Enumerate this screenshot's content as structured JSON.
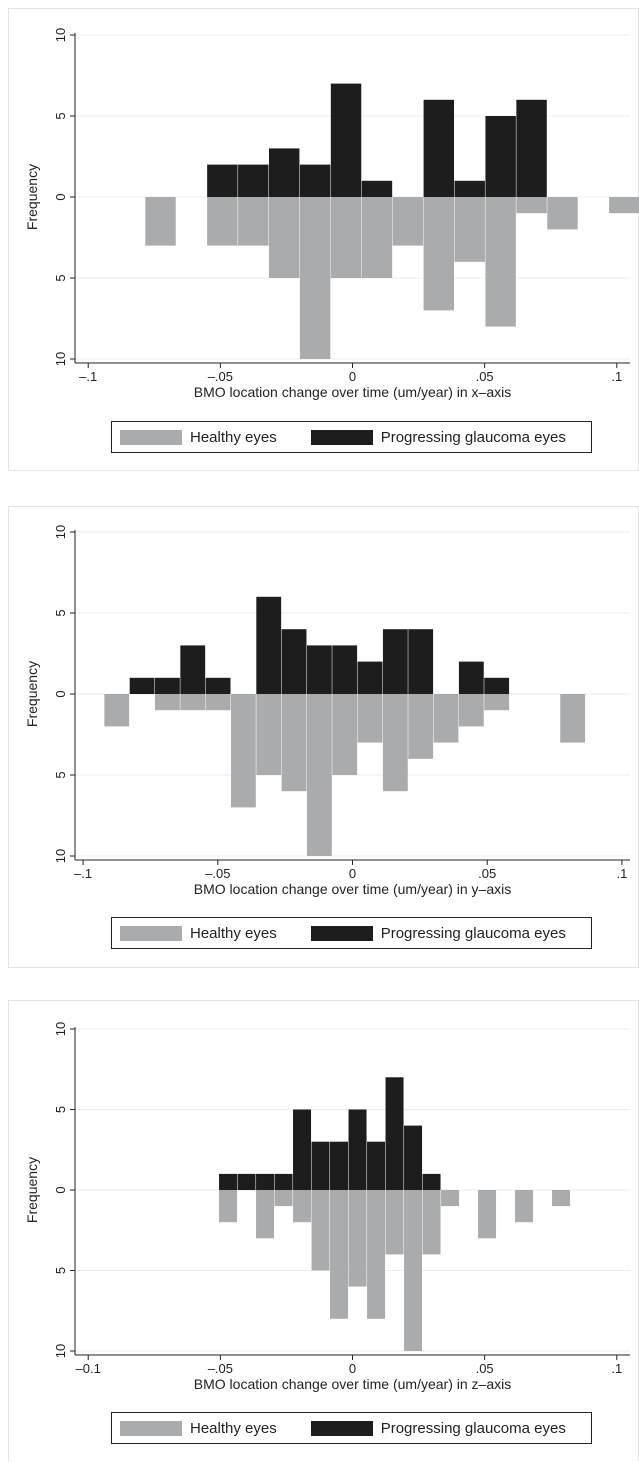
{
  "colors": {
    "healthy": "#aaabad",
    "progressing": "#1d1d1d",
    "grid": "#e8eef2",
    "axis": "#222222"
  },
  "chart_data": [
    {
      "type": "bar",
      "xlabel": "BMO location change over time (um/year) in x–axis",
      "ylabel": "Frequency",
      "xlim": [
        -0.1,
        0.1
      ],
      "ylim_up": [
        0,
        10
      ],
      "ylim_down": [
        0,
        10
      ],
      "bin_width": 0.0117,
      "xticks": [
        {
          "v": -0.1,
          "label": "–.1"
        },
        {
          "v": -0.05,
          "label": "–.05"
        },
        {
          "v": 0,
          "label": "0"
        },
        {
          "v": 0.05,
          "label": ".05"
        },
        {
          "v": 0.1,
          "label": ".1"
        }
      ],
      "yticks": [
        {
          "v": 10,
          "label": "10"
        },
        {
          "v": 5,
          "label": "5"
        },
        {
          "v": 0,
          "label": "0"
        },
        {
          "v": -5,
          "label": "5"
        },
        {
          "v": -10,
          "label": "10"
        }
      ],
      "series": [
        {
          "name": "Progressing glaucoma eyes",
          "direction": "up",
          "x": [
            -0.055,
            -0.0433,
            -0.0316,
            -0.0199,
            -0.0082,
            0.0035,
            0.0269,
            0.0386,
            0.0503,
            0.062
          ],
          "values": [
            2,
            2,
            3,
            2,
            7,
            1,
            6,
            1,
            5,
            6
          ]
        },
        {
          "name": "Healthy eyes",
          "direction": "down",
          "x": [
            -0.0784,
            -0.055,
            -0.0433,
            -0.0316,
            -0.0199,
            -0.0082,
            0.0035,
            0.0152,
            0.0269,
            0.0386,
            0.0503,
            0.062,
            0.0737,
            0.0971
          ],
          "values": [
            3,
            3,
            3,
            5,
            10,
            5,
            5,
            3,
            7,
            4,
            8,
            1,
            2,
            1
          ]
        }
      ],
      "legend": [
        {
          "label": "Healthy eyes",
          "key": "healthy"
        },
        {
          "label": "Progressing glaucoma eyes",
          "key": "progressing"
        }
      ],
      "legend_position": "bottom"
    },
    {
      "type": "bar",
      "xlabel": "BMO location change over time (um/year) in y–axis",
      "ylabel": "Frequency",
      "xlim": [
        -0.1,
        0.1
      ],
      "ylim_up": [
        0,
        10
      ],
      "ylim_down": [
        0,
        10
      ],
      "bin_width": 0.0094,
      "xticks": [
        {
          "v": -0.1,
          "label": "–.1"
        },
        {
          "v": -0.05,
          "label": "–.05"
        },
        {
          "v": 0,
          "label": "0"
        },
        {
          "v": 0.05,
          "label": ".05"
        },
        {
          "v": 0.1,
          "label": ".1"
        }
      ],
      "yticks": [
        {
          "v": 10,
          "label": "10"
        },
        {
          "v": 5,
          "label": "5"
        },
        {
          "v": 0,
          "label": "0"
        },
        {
          "v": -5,
          "label": "5"
        },
        {
          "v": -10,
          "label": "10"
        }
      ],
      "series": [
        {
          "name": "Progressing glaucoma eyes",
          "direction": "up",
          "x": [
            -0.0827,
            -0.0733,
            -0.0639,
            -0.0545,
            -0.0357,
            -0.0263,
            -0.0169,
            -0.0075,
            0.0019,
            0.0113,
            0.0207,
            0.0395,
            0.0489
          ],
          "values": [
            1,
            1,
            3,
            1,
            6,
            4,
            3,
            3,
            2,
            4,
            4,
            2,
            1
          ]
        },
        {
          "name": "Healthy eyes",
          "direction": "down",
          "x": [
            -0.0921,
            -0.0733,
            -0.0639,
            -0.0545,
            -0.0451,
            -0.0357,
            -0.0263,
            -0.0169,
            -0.0075,
            0.0019,
            0.0113,
            0.0207,
            0.0301,
            0.0395,
            0.0489,
            0.0771
          ],
          "values": [
            2,
            1,
            1,
            1,
            7,
            5,
            6,
            10,
            5,
            3,
            6,
            4,
            3,
            2,
            1,
            3
          ]
        }
      ],
      "legend": [
        {
          "label": "Healthy eyes",
          "key": "healthy"
        },
        {
          "label": "Progressing glaucoma eyes",
          "key": "progressing"
        }
      ],
      "legend_position": "bottom"
    },
    {
      "type": "bar",
      "xlabel": "BMO location change over time (um/year) in z–axis",
      "ylabel": "Frequency",
      "xlim": [
        -0.1,
        0.1
      ],
      "ylim_up": [
        0,
        10
      ],
      "ylim_down": [
        0,
        10
      ],
      "bin_width": 0.007,
      "xticks": [
        {
          "v": -0.1,
          "label": "–0.1"
        },
        {
          "v": -0.05,
          "label": "–.05"
        },
        {
          "v": 0,
          "label": "0"
        },
        {
          "v": 0.05,
          "label": ".05"
        },
        {
          "v": 0.1,
          "label": ".1"
        }
      ],
      "yticks": [
        {
          "v": 10,
          "label": "10"
        },
        {
          "v": 5,
          "label": "5"
        },
        {
          "v": 0,
          "label": "0"
        },
        {
          "v": -5,
          "label": "5"
        },
        {
          "v": -10,
          "label": "10"
        }
      ],
      "series": [
        {
          "name": "Progressing glaucoma eyes",
          "direction": "up",
          "x": [
            -0.0505,
            -0.0435,
            -0.0365,
            -0.0295,
            -0.0225,
            -0.0155,
            -0.0085,
            -0.0015,
            0.0055,
            0.0125,
            0.0195,
            0.0265
          ],
          "values": [
            1,
            1,
            1,
            1,
            5,
            3,
            3,
            5,
            3,
            7,
            4,
            1
          ]
        },
        {
          "name": "Healthy eyes",
          "direction": "down",
          "x": [
            -0.0505,
            -0.0365,
            -0.0295,
            -0.0225,
            -0.0155,
            -0.0085,
            -0.0015,
            0.0055,
            0.0125,
            0.0195,
            0.0265,
            0.0335,
            0.0475,
            0.0615,
            0.0755
          ],
          "values": [
            2,
            3,
            1,
            2,
            5,
            8,
            6,
            8,
            4,
            10,
            4,
            1,
            3,
            2,
            1
          ]
        }
      ],
      "legend": [
        {
          "label": "Healthy eyes",
          "key": "healthy"
        },
        {
          "label": "Progressing glaucoma eyes",
          "key": "progressing"
        }
      ],
      "legend_position": "bottom"
    }
  ]
}
